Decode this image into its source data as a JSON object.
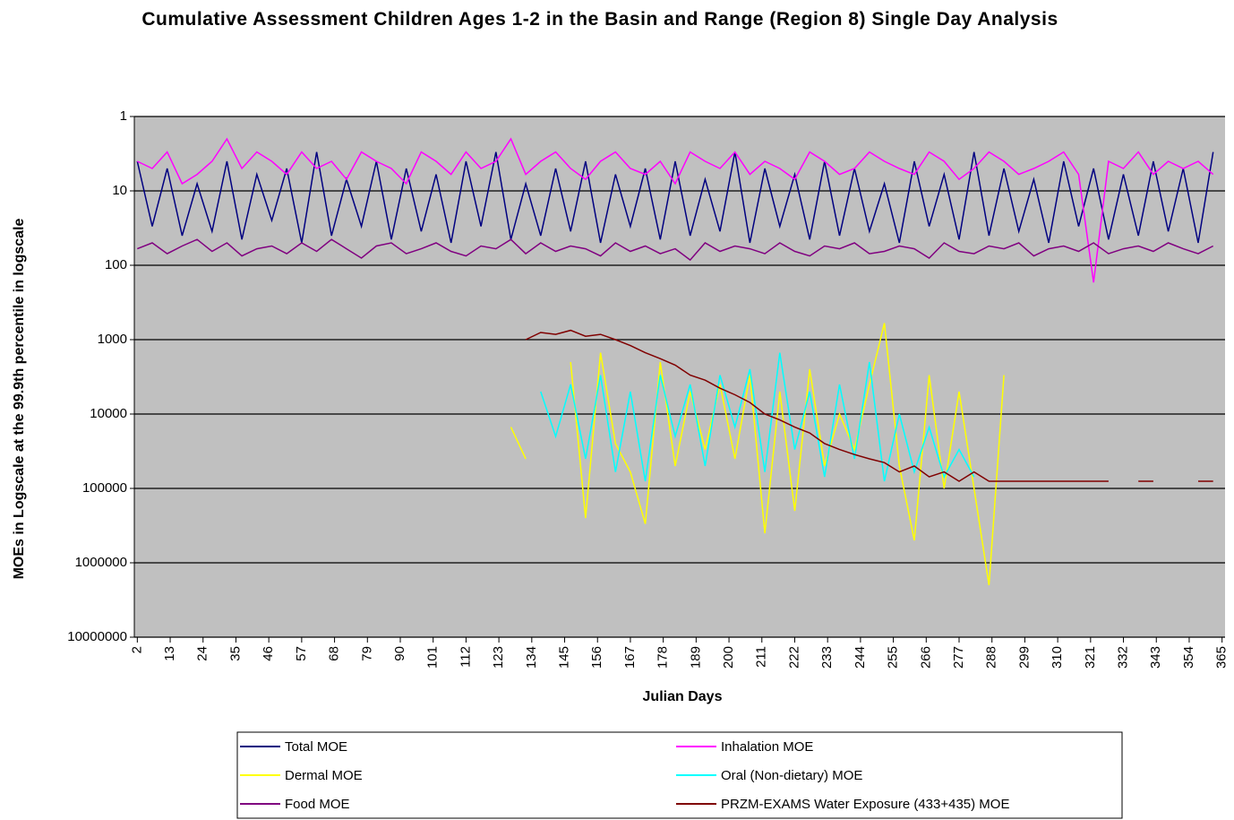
{
  "chart_data": {
    "type": "line",
    "title": "Cumulative Assessment Children Ages 1-2 in the Basin and Range (Region 8) Single Day Analysis",
    "x_label": "Julian Days",
    "y_label": "MOEs in Logscale at the 99.9th percentile in logscale",
    "yscale": "log",
    "y_reversed": true,
    "grid": true,
    "legend": "bottom",
    "ylim": [
      1,
      10000000
    ],
    "yticks": [
      1,
      10,
      100,
      1000,
      10000,
      100000,
      1000000,
      10000000
    ],
    "xlim": [
      1,
      366
    ],
    "xticks": [
      2,
      13,
      24,
      35,
      46,
      57,
      68,
      79,
      90,
      101,
      112,
      123,
      134,
      145,
      156,
      167,
      178,
      189,
      200,
      211,
      222,
      233,
      244,
      255,
      266,
      277,
      288,
      299,
      310,
      321,
      332,
      343,
      354,
      365
    ],
    "x": [
      2,
      7,
      12,
      17,
      22,
      27,
      32,
      37,
      42,
      47,
      52,
      57,
      62,
      67,
      72,
      77,
      82,
      87,
      92,
      97,
      102,
      107,
      112,
      117,
      122,
      127,
      132,
      137,
      142,
      147,
      152,
      157,
      162,
      167,
      172,
      177,
      182,
      187,
      192,
      197,
      202,
      207,
      212,
      217,
      222,
      227,
      232,
      237,
      242,
      247,
      252,
      257,
      262,
      267,
      272,
      277,
      282,
      287,
      292,
      297,
      302,
      307,
      312,
      317,
      322,
      327,
      332,
      337,
      342,
      347,
      352,
      357,
      362
    ],
    "series": [
      {
        "name": "Total MOE",
        "color": "#000080",
        "values": [
          4,
          30,
          5,
          40,
          8,
          35,
          4,
          45,
          6,
          25,
          5,
          50,
          3,
          40,
          7,
          30,
          4,
          45,
          5,
          35,
          6,
          50,
          4,
          30,
          3,
          45,
          8,
          40,
          5,
          35,
          4,
          50,
          6,
          30,
          5,
          45,
          4,
          40,
          7,
          35,
          3,
          50,
          5,
          30,
          6,
          45,
          4,
          40,
          5,
          35,
          8,
          50,
          4,
          30,
          6,
          45,
          3,
          40,
          5,
          35,
          7,
          50,
          4,
          30,
          5,
          45,
          6,
          40,
          4,
          35,
          5,
          50,
          3
        ]
      },
      {
        "name": "Inhalation MOE",
        "color": "#ff00ff",
        "values": [
          4,
          5,
          3,
          8,
          6,
          4,
          2,
          5,
          3,
          4,
          6,
          3,
          5,
          4,
          7,
          3,
          4,
          5,
          8,
          3,
          4,
          6,
          3,
          5,
          4,
          2,
          6,
          4,
          3,
          5,
          7,
          4,
          3,
          5,
          6,
          4,
          8,
          3,
          4,
          5,
          3,
          6,
          4,
          5,
          7,
          3,
          4,
          6,
          5,
          3,
          4,
          5,
          6,
          3,
          4,
          7,
          5,
          3,
          4,
          6,
          5,
          4,
          3,
          6,
          170,
          4,
          5,
          3,
          6,
          4,
          5,
          4,
          6
        ]
      },
      {
        "name": "Dermal MOE",
        "color": "#ffff00",
        "values": [
          null,
          null,
          null,
          null,
          null,
          null,
          null,
          null,
          null,
          null,
          null,
          null,
          null,
          null,
          null,
          null,
          null,
          null,
          null,
          null,
          null,
          null,
          null,
          null,
          null,
          15000,
          40000,
          null,
          null,
          2000,
          250000,
          1500,
          25000,
          60000,
          300000,
          2000,
          50000,
          5000,
          30000,
          4000,
          40000,
          3000,
          400000,
          5000,
          200000,
          2500,
          50000,
          10000,
          30000,
          4000,
          600,
          50000,
          500000,
          3000,
          100000,
          5000,
          100000,
          2000000,
          3000,
          null,
          null,
          null,
          null,
          null,
          null,
          null,
          null,
          null,
          null,
          null,
          null,
          null,
          null
        ]
      },
      {
        "name": "Oral (Non-dietary) MOE",
        "color": "#00ffff",
        "values": [
          null,
          null,
          null,
          null,
          null,
          null,
          null,
          null,
          null,
          null,
          null,
          null,
          null,
          null,
          null,
          null,
          null,
          null,
          null,
          null,
          null,
          null,
          null,
          null,
          null,
          null,
          null,
          5000,
          20000,
          4000,
          40000,
          3000,
          60000,
          5000,
          80000,
          3000,
          20000,
          4000,
          50000,
          3000,
          15000,
          2500,
          60000,
          1500,
          30000,
          5000,
          70000,
          4000,
          40000,
          2000,
          80000,
          10000,
          60000,
          15000,
          70000,
          30000,
          70000,
          null,
          null,
          null,
          null,
          null,
          null,
          null,
          null,
          null,
          null,
          null,
          null,
          null,
          null,
          null,
          null
        ]
      },
      {
        "name": "Food MOE",
        "color": "#800080",
        "values": [
          60,
          50,
          70,
          55,
          45,
          65,
          50,
          75,
          60,
          55,
          70,
          50,
          65,
          45,
          60,
          80,
          55,
          50,
          70,
          60,
          50,
          65,
          75,
          55,
          60,
          45,
          70,
          50,
          65,
          55,
          60,
          75,
          50,
          65,
          55,
          70,
          60,
          85,
          50,
          65,
          55,
          60,
          70,
          50,
          65,
          75,
          55,
          60,
          50,
          70,
          65,
          55,
          60,
          80,
          50,
          65,
          70,
          55,
          60,
          50,
          75,
          60,
          55,
          65,
          50,
          70,
          60,
          55,
          65,
          50,
          60,
          70,
          55
        ]
      },
      {
        "name": "PRZM-EXAMS Water Exposure (433+435) MOE",
        "color": "#800000",
        "values": [
          null,
          null,
          null,
          null,
          null,
          null,
          null,
          null,
          null,
          null,
          null,
          null,
          null,
          null,
          null,
          null,
          null,
          null,
          null,
          null,
          null,
          null,
          null,
          null,
          null,
          null,
          1000,
          800,
          850,
          750,
          900,
          850,
          1000,
          1200,
          1500,
          1800,
          2200,
          3000,
          3500,
          4500,
          5500,
          7000,
          10000,
          12000,
          15000,
          18000,
          25000,
          30000,
          35000,
          40000,
          45000,
          60000,
          50000,
          70000,
          60000,
          80000,
          60000,
          80000,
          80000,
          80000,
          80000,
          80000,
          80000,
          80000,
          80000,
          80000,
          null,
          80000,
          80000,
          null,
          null,
          80000,
          80000
        ]
      }
    ]
  }
}
